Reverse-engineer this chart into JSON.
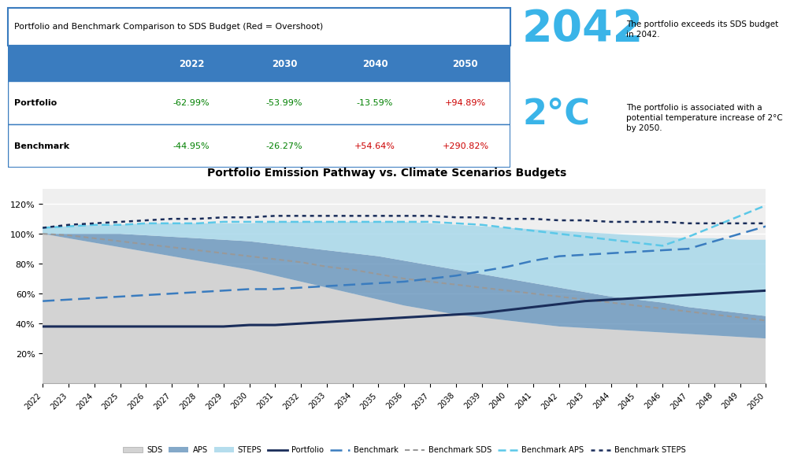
{
  "years": [
    2022,
    2023,
    2024,
    2025,
    2026,
    2027,
    2028,
    2029,
    2030,
    2031,
    2032,
    2033,
    2034,
    2035,
    2036,
    2037,
    2038,
    2039,
    2040,
    2041,
    2042,
    2043,
    2044,
    2045,
    2046,
    2047,
    2048,
    2049,
    2050
  ],
  "SDS": [
    100,
    97,
    94,
    91,
    88,
    85,
    82,
    79,
    76,
    72,
    68,
    64,
    60,
    56,
    52,
    49,
    46,
    44,
    42,
    40,
    38,
    37,
    36,
    35,
    34,
    33,
    32,
    31,
    30
  ],
  "APS": [
    100,
    100,
    100,
    100,
    99,
    98,
    97,
    96,
    95,
    93,
    91,
    89,
    87,
    85,
    82,
    79,
    76,
    73,
    70,
    67,
    64,
    61,
    58,
    56,
    54,
    51,
    49,
    47,
    45
  ],
  "STEPS": [
    104,
    105,
    106,
    106,
    107,
    107,
    107,
    107,
    107,
    108,
    108,
    108,
    108,
    108,
    108,
    107,
    106,
    105,
    104,
    103,
    102,
    101,
    100,
    99,
    98,
    97,
    97,
    96,
    96
  ],
  "Portfolio": [
    38,
    38,
    38,
    38,
    38,
    38,
    38,
    38,
    39,
    39,
    40,
    41,
    42,
    43,
    44,
    45,
    46,
    47,
    49,
    51,
    53,
    55,
    56,
    57,
    58,
    59,
    60,
    61,
    62
  ],
  "Benchmark": [
    55,
    56,
    57,
    58,
    59,
    60,
    61,
    62,
    63,
    63,
    64,
    65,
    66,
    67,
    68,
    70,
    72,
    75,
    78,
    82,
    85,
    86,
    87,
    88,
    89,
    90,
    95,
    100,
    105
  ],
  "BenchmarkSDS": [
    100,
    99,
    97,
    95,
    93,
    91,
    89,
    87,
    85,
    83,
    81,
    78,
    76,
    73,
    70,
    68,
    66,
    64,
    62,
    60,
    58,
    56,
    54,
    52,
    50,
    48,
    46,
    44,
    42
  ],
  "BenchmarkAPS": [
    104,
    105,
    106,
    106,
    107,
    107,
    107,
    108,
    108,
    108,
    108,
    108,
    108,
    108,
    108,
    108,
    107,
    106,
    104,
    102,
    100,
    98,
    96,
    94,
    92,
    98,
    105,
    112,
    119
  ],
  "BenchmarkSTEPS": [
    104,
    106,
    107,
    108,
    109,
    110,
    110,
    111,
    111,
    112,
    112,
    112,
    112,
    112,
    112,
    112,
    111,
    111,
    110,
    110,
    109,
    109,
    108,
    108,
    108,
    107,
    107,
    107,
    107
  ],
  "table_header_bg": "#3a7cbf",
  "table_header_color": "#ffffff",
  "table_border_color": "#3a7cbf",
  "portfolio_row": [
    "-62.99%",
    "-53.99%",
    "-13.59%",
    "+94.89%"
  ],
  "benchmark_row": [
    "-44.95%",
    "-26.27%",
    "+54.64%",
    "+290.82%"
  ],
  "portfolio_colors": [
    "#008000",
    "#008000",
    "#008000",
    "#cc0000"
  ],
  "benchmark_colors": [
    "#008000",
    "#008000",
    "#cc0000",
    "#cc0000"
  ],
  "year_highlight": "2042",
  "temp_highlight": "2°C",
  "text1": "The portfolio exceeds its SDS budget\nin 2042.",
  "text2": "The portfolio is associated with a\npotential temperature increase of 2°C\nby 2050.",
  "chart_title": "Portfolio Emission Pathway vs. Climate Scenarios Budgets",
  "color_SDS": "#d3d3d3",
  "color_APS": "#5b8db8",
  "color_STEPS": "#a8d8ea",
  "color_Portfolio": "#1a2d5a",
  "color_Benchmark": "#3a7cbf",
  "color_BenchmarkSDS": "#999999",
  "color_BenchmarkAPS": "#5bc8e8",
  "color_BenchmarkSTEPS": "#1a2d5a"
}
